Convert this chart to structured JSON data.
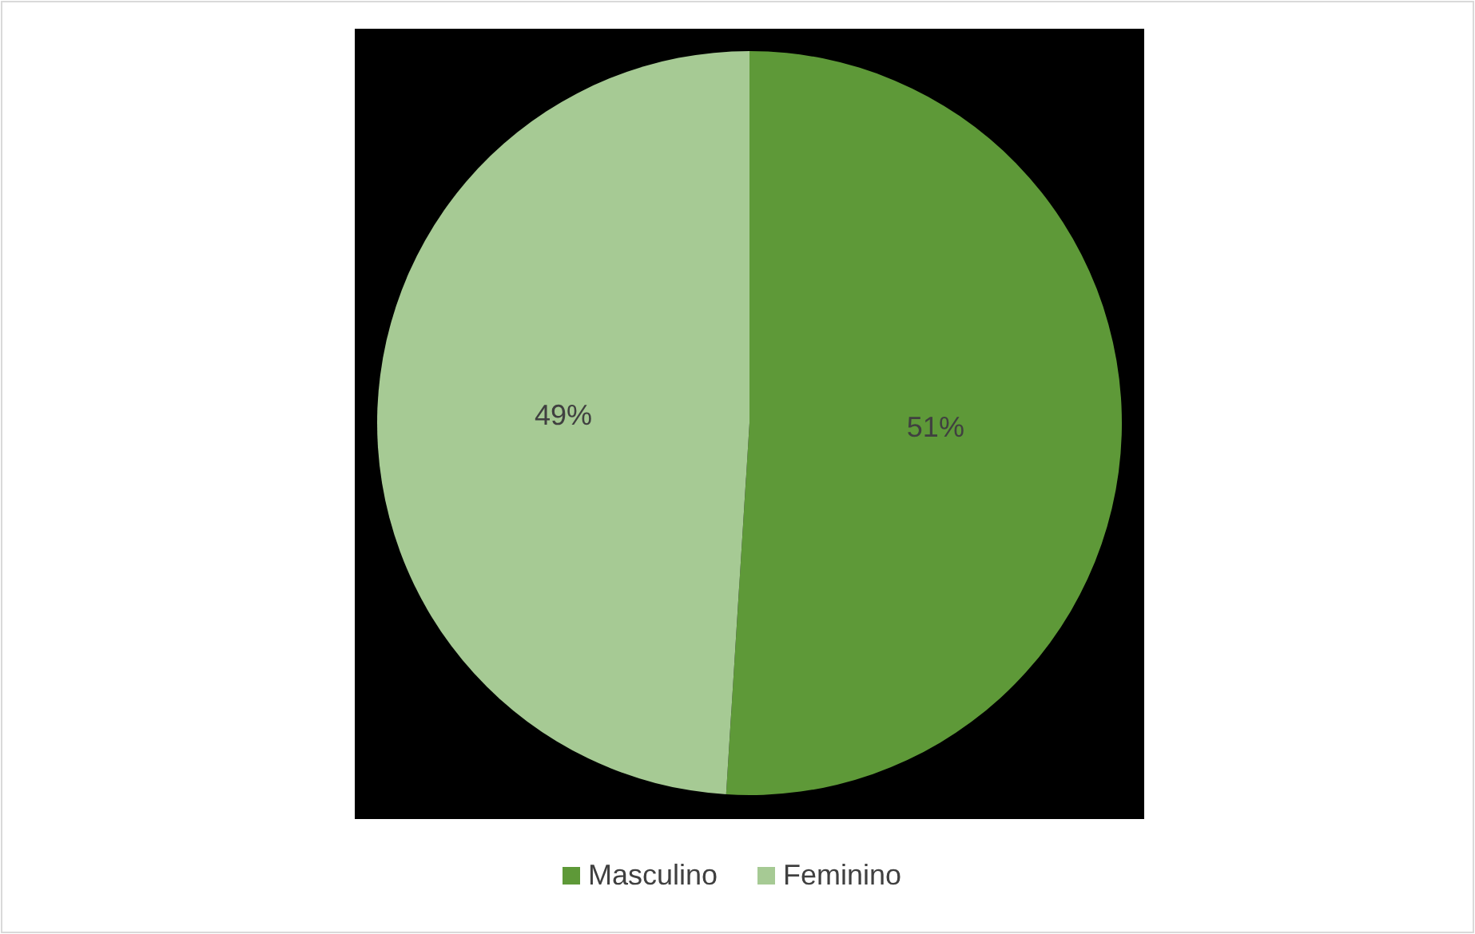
{
  "chart_data": {
    "type": "pie",
    "categories": [
      "Masculino",
      "Feminino"
    ],
    "values": [
      51,
      49
    ],
    "value_labels": [
      "51%",
      "49%"
    ],
    "colors": [
      "#5e9938",
      "#a6ca94"
    ],
    "legend": "bottom"
  }
}
